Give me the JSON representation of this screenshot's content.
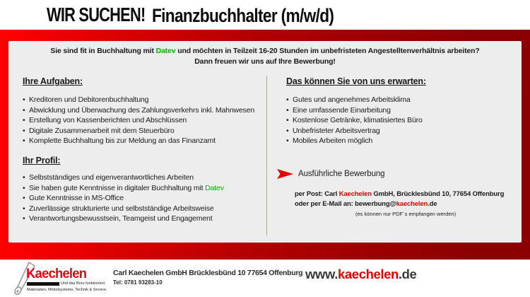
{
  "header": {
    "title": "WIR SUCHEN!",
    "subtitle": "Finanzbuchhalter (m/w/d)"
  },
  "intro": {
    "line1": [
      {
        "t": "Sie sind fit in Buchhaltung mit "
      },
      {
        "t": "Datev",
        "c": "green"
      },
      {
        "t": " und möchten in Teilzeit 16-20 Stunden im unbefristeten Angestelltenverhältnis arbeiten?"
      }
    ],
    "line2": "Dann freuen wir uns auf Ihre Bewerbung!"
  },
  "sections": {
    "tasks": {
      "heading": "Ihre Aufgaben:",
      "items": [
        [
          {
            "t": "Kreditoren und Debitorenbuchhaltung"
          }
        ],
        [
          {
            "t": "Abwicklung und Überwachung des Zahlungsverkehrs inkl. Mahnwesen"
          }
        ],
        [
          {
            "t": "Erstellung von Kassenberichten und Abschlüssen"
          }
        ],
        [
          {
            "t": "Digitale Zusammenarbeit mit dem Steuerbüro"
          }
        ],
        [
          {
            "t": "Komplette Buchhaltung bis zur Meldung an das Finanzamt"
          }
        ]
      ]
    },
    "profile": {
      "heading": "Ihr Profil:",
      "items": [
        [
          {
            "t": "Selbstständiges und eigenverantwortliches Arbeiten"
          }
        ],
        [
          {
            "t": "Sie haben gute Kenntnisse in digitaler Buchhaltung mit "
          },
          {
            "t": "Datev",
            "c": "green"
          }
        ],
        [
          {
            "t": "Gute Kenntnisse in MS-Office"
          }
        ],
        [
          {
            "t": "Zuverlässige strukturierte und selbstständige Arbeitsweise"
          }
        ],
        [
          {
            "t": "Verantwortungsbewusstsein, Teamgeist und Engagement"
          }
        ]
      ]
    },
    "expect": {
      "heading": "Das können Sie von uns erwarten:",
      "items": [
        [
          {
            "t": "Gutes und angenehmes Arbeitsklima"
          }
        ],
        [
          {
            "t": "Eine umfassende Einarbeitung"
          }
        ],
        [
          {
            "t": "Kostenlose Getränke, klimatisiertes Büro"
          }
        ],
        [
          {
            "t": "Unbefristeter Arbeitsvertrag"
          }
        ],
        [
          {
            "t": "Mobiles Arbeiten möglich"
          }
        ]
      ]
    },
    "apply": {
      "title": "Ausführliche Bewerbung",
      "post_line": [
        {
          "t": "per Post: Carl "
        },
        {
          "t": "Kaechelen",
          "c": "red"
        },
        {
          "t": " GmbH, Brücklesbünd 10, 77654 Offenburg"
        }
      ],
      "email_line": [
        {
          "t": "oder per E-Mail an: bewerbung@"
        },
        {
          "t": "kaechelen",
          "c": "red"
        },
        {
          "t": ".de"
        }
      ],
      "note": "(es können nur PDF´s empfangen werden)"
    }
  },
  "footer": {
    "logo": {
      "name": "Kaechelen",
      "tagline1": "Und das Büro funktioniert.",
      "tagline2": "Materialien, Möbelsysteme, Technik & Service."
    },
    "address": "Carl Kaechelen GmbH Brücklesbünd 10 77654 Offenburg",
    "phone": "Tel: 0781 93283-10",
    "website": [
      {
        "t": "www.",
        "c": "dark"
      },
      {
        "t": "kaechelen",
        "c": "red"
      },
      {
        "t": ".de",
        "c": "dark"
      }
    ]
  },
  "colors": {
    "bright_red": "#fe0100",
    "dark_red": "#8b0000",
    "accent_red": "#e30000",
    "logo_red": "#e30613",
    "green": "#00b400",
    "box_gray": "#ededed"
  }
}
